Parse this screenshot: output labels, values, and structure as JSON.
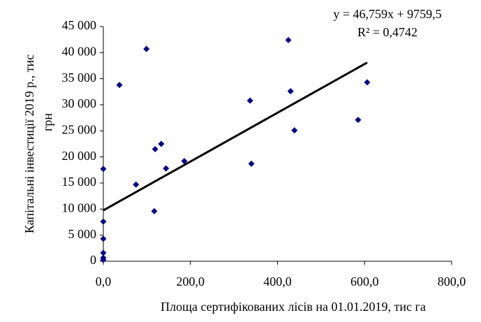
{
  "chart_data": {
    "type": "scatter",
    "xlabel": "Площа сертифікованих лісів на 01.01.2019, тис га",
    "ylabel": [
      "Капітальні інвестиції 2019 р., тис",
      "грн"
    ],
    "x": [
      0,
      0,
      0,
      0,
      0,
      0,
      37,
      75,
      99,
      117,
      119,
      133,
      144,
      186,
      337,
      340,
      425,
      430,
      439,
      585,
      606
    ],
    "values": [
      270,
      670,
      1600,
      4300,
      7600,
      17700,
      33800,
      14700,
      40700,
      9600,
      21500,
      22500,
      17800,
      19200,
      30800,
      18700,
      42400,
      32600,
      25100,
      27100,
      34300
    ],
    "color": "#000080",
    "xlim": [
      0,
      800
    ],
    "xticks": [
      {
        "value": 0,
        "label": "0,0"
      },
      {
        "value": 200,
        "label": "200,0"
      },
      {
        "value": 400,
        "label": "400,0"
      },
      {
        "value": 600,
        "label": "600,0"
      },
      {
        "value": 800,
        "label": "800,0"
      }
    ],
    "ylim": [
      0,
      45000
    ],
    "yticks": [
      0,
      {
        "value": 5000,
        "label": "5 000"
      },
      {
        "value": 10000,
        "label": "10 000"
      },
      {
        "value": 15000,
        "label": "15 000"
      },
      {
        "value": 20000,
        "label": "20 000"
      },
      {
        "value": 25000,
        "label": "25 000"
      },
      {
        "value": 30000,
        "label": "30 000"
      },
      {
        "value": 35000,
        "label": "35 000"
      },
      {
        "value": 40000,
        "label": "40 000"
      },
      {
        "value": 45000,
        "label": "45 000"
      }
    ],
    "grid": false,
    "trendline": {
      "equation": "y = 46,759x + 9759,5",
      "r2": "R² = 0,4742",
      "slope": 46.759,
      "intercept": 9759.5,
      "color": "#000000"
    }
  }
}
